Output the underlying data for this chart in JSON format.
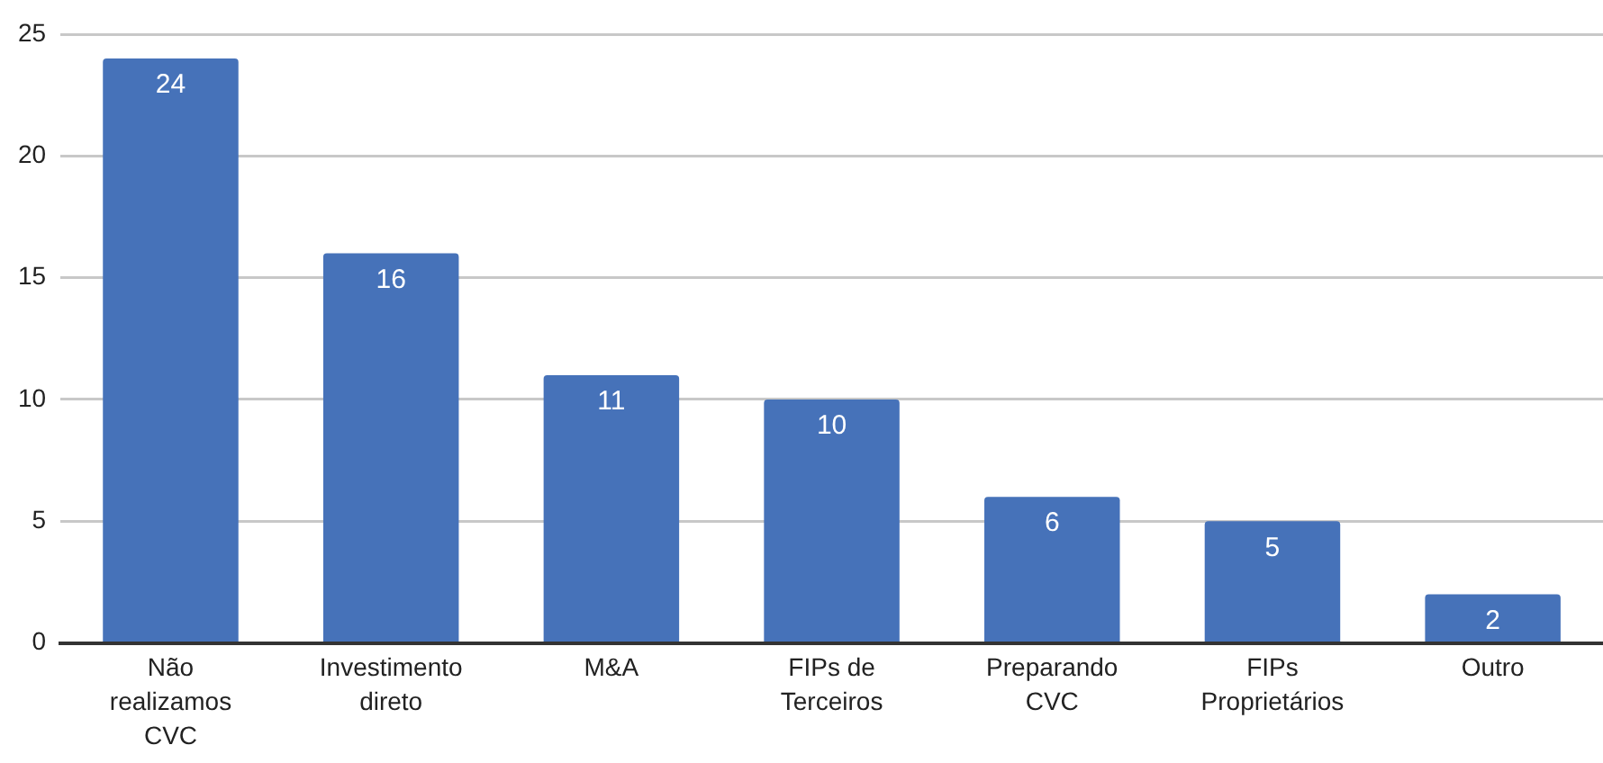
{
  "chart_data": {
    "type": "bar",
    "categories": [
      "Não realizamos CVC",
      "Investimento direto",
      "M&A",
      "FIPs de Terceiros",
      "Preparando CVC",
      "FIPs Proprietários",
      "Outro"
    ],
    "values": [
      24,
      16,
      11,
      10,
      6,
      5,
      2
    ],
    "color": "#4672b9",
    "ylim": [
      0,
      25
    ],
    "yticks": [
      0,
      5,
      10,
      15,
      20,
      25
    ],
    "grid": "y",
    "data_labels": true
  }
}
